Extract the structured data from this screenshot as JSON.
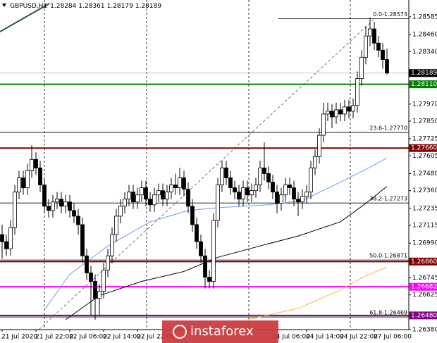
{
  "chart_data": {
    "type": "candlestick",
    "symbol": "GBPUSD,H1",
    "categories": [
      "21 Jul 2020",
      null,
      null,
      null,
      null,
      null,
      null,
      null,
      "21 Jul 22:00",
      null,
      null,
      null,
      null,
      null,
      null,
      null,
      "22 Jul 06:00",
      null,
      null,
      null,
      null,
      null,
      null,
      null,
      "22 Jul 14:00",
      null,
      null,
      null,
      null,
      null,
      null,
      null,
      "22 Jul 22:00",
      null,
      null,
      null,
      null,
      null,
      null,
      null,
      null,
      null,
      null,
      null,
      null,
      null,
      null,
      null,
      null,
      null,
      null,
      null,
      null,
      null,
      null,
      null,
      null,
      null,
      null,
      null,
      null,
      null,
      null,
      null,
      "24 Jul 06:00",
      null,
      null,
      null,
      null,
      null,
      null,
      null,
      "24 Jul 14:00",
      null,
      null,
      null,
      null,
      null,
      null,
      null,
      "24 Jul 22:00",
      null,
      null,
      null,
      null,
      null,
      null,
      null,
      "27 Jul 06:00",
      null,
      null,
      null
    ],
    "open": [
      1.2705,
      1.27,
      1.2695,
      1.271,
      1.2735,
      1.2745,
      1.2738,
      1.275,
      1.2758,
      1.2752,
      1.274,
      1.2725,
      1.2722,
      1.2728,
      1.273,
      1.2725,
      1.2728,
      1.2722,
      1.2718,
      1.2712,
      1.269,
      1.2678,
      1.2672,
      1.266,
      1.2665,
      1.268,
      1.269,
      1.2705,
      1.2718,
      1.2725,
      1.273,
      1.2735,
      1.2728,
      1.2733,
      1.2738,
      1.273,
      1.2726,
      1.2733,
      1.2736,
      1.273,
      1.2735,
      1.274,
      1.2738,
      1.2745,
      1.2737,
      1.2725,
      1.2712,
      1.27,
      1.269,
      1.2675,
      1.2672,
      1.2715,
      1.274,
      1.2752,
      1.2745,
      1.2738,
      1.2735,
      1.273,
      1.2738,
      1.2733,
      1.2736,
      1.274,
      1.2752,
      1.2748,
      1.2742,
      1.2735,
      1.2727,
      1.2733,
      1.274,
      1.2738,
      1.273,
      1.2728,
      1.2732,
      1.2735,
      1.2752,
      1.276,
      1.2775,
      1.279,
      1.2792,
      1.2788,
      1.2793,
      1.279,
      1.2795,
      1.2792,
      1.2796,
      1.2815,
      1.283,
      1.2845,
      1.285,
      1.284,
      1.2835,
      1.28284
    ],
    "high": [
      1.2712,
      1.2705,
      1.2715,
      1.274,
      1.275,
      1.275,
      1.2755,
      1.2768,
      1.2763,
      1.2757,
      1.2745,
      1.273,
      1.2733,
      1.2735,
      1.2735,
      1.2733,
      1.2733,
      1.2727,
      1.2723,
      1.2717,
      1.2695,
      1.2683,
      1.2677,
      1.267,
      1.2685,
      1.2695,
      1.271,
      1.2723,
      1.273,
      1.2735,
      1.274,
      1.274,
      1.2738,
      1.2743,
      1.2743,
      1.2735,
      1.2738,
      1.2741,
      1.2741,
      1.274,
      1.2745,
      1.2748,
      1.2752,
      1.275,
      1.2742,
      1.273,
      1.2717,
      1.2705,
      1.2695,
      1.268,
      1.272,
      1.2745,
      1.2757,
      1.2757,
      1.275,
      1.2743,
      1.274,
      1.2743,
      1.2743,
      1.2741,
      1.2745,
      1.2757,
      1.277,
      1.2753,
      1.2747,
      1.274,
      1.2738,
      1.2745,
      1.2745,
      1.2743,
      1.2735,
      1.2737,
      1.274,
      1.2757,
      1.2765,
      1.278,
      1.2798,
      1.2798,
      1.2797,
      1.2798,
      1.2798,
      1.28,
      1.28,
      1.2801,
      1.282,
      1.2835,
      1.2852,
      1.2858,
      1.2855,
      1.2845,
      1.284,
      1.28361
    ],
    "low": [
      1.2688,
      1.269,
      1.269,
      1.2705,
      1.273,
      1.2733,
      1.2733,
      1.2745,
      1.2747,
      1.2735,
      1.272,
      1.2717,
      1.2717,
      1.2723,
      1.272,
      1.272,
      1.2717,
      1.2713,
      1.2705,
      1.2685,
      1.2673,
      1.2648,
      1.2645,
      1.2648,
      1.266,
      1.2675,
      1.2685,
      1.27,
      1.2713,
      1.272,
      1.2725,
      1.2723,
      1.2723,
      1.2728,
      1.2725,
      1.2721,
      1.2721,
      1.2728,
      1.2725,
      1.2725,
      1.273,
      1.2733,
      1.2733,
      1.2732,
      1.272,
      1.2707,
      1.2695,
      1.2685,
      1.2667,
      1.2667,
      1.2667,
      1.271,
      1.2735,
      1.274,
      1.2733,
      1.273,
      1.2725,
      1.2725,
      1.2728,
      1.2728,
      1.2731,
      1.2735,
      1.2743,
      1.2737,
      1.273,
      1.272,
      1.2722,
      1.2728,
      1.2733,
      1.2725,
      1.2718,
      1.2723,
      1.2727,
      1.273,
      1.2747,
      1.2755,
      1.277,
      1.2785,
      1.278,
      1.2783,
      1.2785,
      1.2785,
      1.2787,
      1.2787,
      1.2791,
      1.281,
      1.2825,
      1.2838,
      1.2835,
      1.283,
      1.2822,
      1.28179
    ],
    "close": [
      1.27,
      1.2695,
      1.271,
      1.2735,
      1.2745,
      1.2738,
      1.275,
      1.2758,
      1.2752,
      1.274,
      1.2725,
      1.2722,
      1.2728,
      1.273,
      1.2725,
      1.2728,
      1.2722,
      1.2718,
      1.2712,
      1.269,
      1.2678,
      1.2672,
      1.266,
      1.2665,
      1.268,
      1.269,
      1.2705,
      1.2718,
      1.2725,
      1.273,
      1.2735,
      1.2728,
      1.2733,
      1.2738,
      1.273,
      1.2726,
      1.2733,
      1.2736,
      1.273,
      1.2735,
      1.274,
      1.2738,
      1.2745,
      1.2737,
      1.2725,
      1.2712,
      1.27,
      1.269,
      1.2675,
      1.2672,
      1.2715,
      1.274,
      1.2752,
      1.2745,
      1.2738,
      1.2735,
      1.273,
      1.2738,
      1.2733,
      1.2736,
      1.274,
      1.2752,
      1.2748,
      1.2742,
      1.2735,
      1.2727,
      1.2733,
      1.274,
      1.2738,
      1.273,
      1.2728,
      1.2732,
      1.2735,
      1.2752,
      1.276,
      1.2775,
      1.279,
      1.2792,
      1.2788,
      1.2793,
      1.279,
      1.2795,
      1.2792,
      1.2796,
      1.2815,
      1.283,
      1.2845,
      1.285,
      1.284,
      1.2835,
      1.28284,
      1.28189
    ],
    "bull_color": "#ffffff",
    "bear_color": "#000000",
    "ylim": [
      1.2638,
      1.28704
    ],
    "yticks": [
      {
        "value": 1.28585,
        "label": "1.28585"
      },
      {
        "value": 1.2846,
        "label": "1.28460"
      },
      {
        "value": 1.2834,
        "label": "1.28340"
      },
      {
        "value": 1.2797,
        "label": "1.27970"
      },
      {
        "value": 1.2785,
        "label": "1.27850"
      },
      {
        "value": 1.27725,
        "label": "1.27725"
      },
      {
        "value": 1.27605,
        "label": "1.27605"
      },
      {
        "value": 1.2748,
        "label": "1.27480"
      },
      {
        "value": 1.2736,
        "label": "1.27360"
      },
      {
        "value": 1.27235,
        "label": "1.27235"
      },
      {
        "value": 1.27115,
        "label": "1.27115"
      },
      {
        "value": 1.2699,
        "label": "1.26990"
      },
      {
        "value": 1.26745,
        "label": "1.26745"
      },
      {
        "value": 1.26625,
        "label": "1.26625"
      },
      {
        "value": 1.2638,
        "label": "1.26380"
      }
    ],
    "moving_averages": [
      {
        "color": "#6f9ce8",
        "x": [
          10,
          16,
          25,
          35,
          44,
          51,
          63,
          71,
          80,
          86,
          91
        ],
        "values": [
          1.2652,
          1.2677,
          1.2697,
          1.2714,
          1.2722,
          1.2724,
          1.2726,
          1.2729,
          1.2742,
          1.2751,
          1.2759
        ]
      },
      {
        "color": "#000000",
        "x": [
          15,
          23,
          33,
          43,
          51,
          61,
          70,
          80,
          86,
          91
        ],
        "values": [
          1.2645,
          1.2662,
          1.2672,
          1.2679,
          1.2689,
          1.2697,
          1.2704,
          1.2714,
          1.2727,
          1.2739
        ]
      },
      {
        "color": "#ffb347",
        "x": [
          58,
          70,
          80,
          86,
          91
        ],
        "values": [
          1.2645,
          1.2653,
          1.2666,
          1.2676,
          1.2682
        ]
      }
    ],
    "levels": [
      {
        "value": 1.2811,
        "label": "1.28110",
        "color": "#008000"
      },
      {
        "value": 1.2766,
        "label": "1.27660",
        "color": "#800000"
      },
      {
        "value": 1.2686,
        "label": "1.26860",
        "color": "#800000"
      },
      {
        "value": 1.26682,
        "label": "1.26682",
        "color": "#ff00ff"
      },
      {
        "value": 1.2648,
        "label": "1.26480",
        "color": "#800080"
      }
    ],
    "fibonacci": [
      {
        "value": 1.28573,
        "label": "0.0-1.28573"
      },
      {
        "value": 1.2777,
        "label": "23.6-1.27770"
      },
      {
        "value": 1.27273,
        "label": "38.2-1.27273"
      },
      {
        "value": 1.26871,
        "label": "50.0-1.26871"
      },
      {
        "value": 1.26469,
        "label": "61.8-1.26469"
      }
    ],
    "watermark": "instaforex"
  }
}
